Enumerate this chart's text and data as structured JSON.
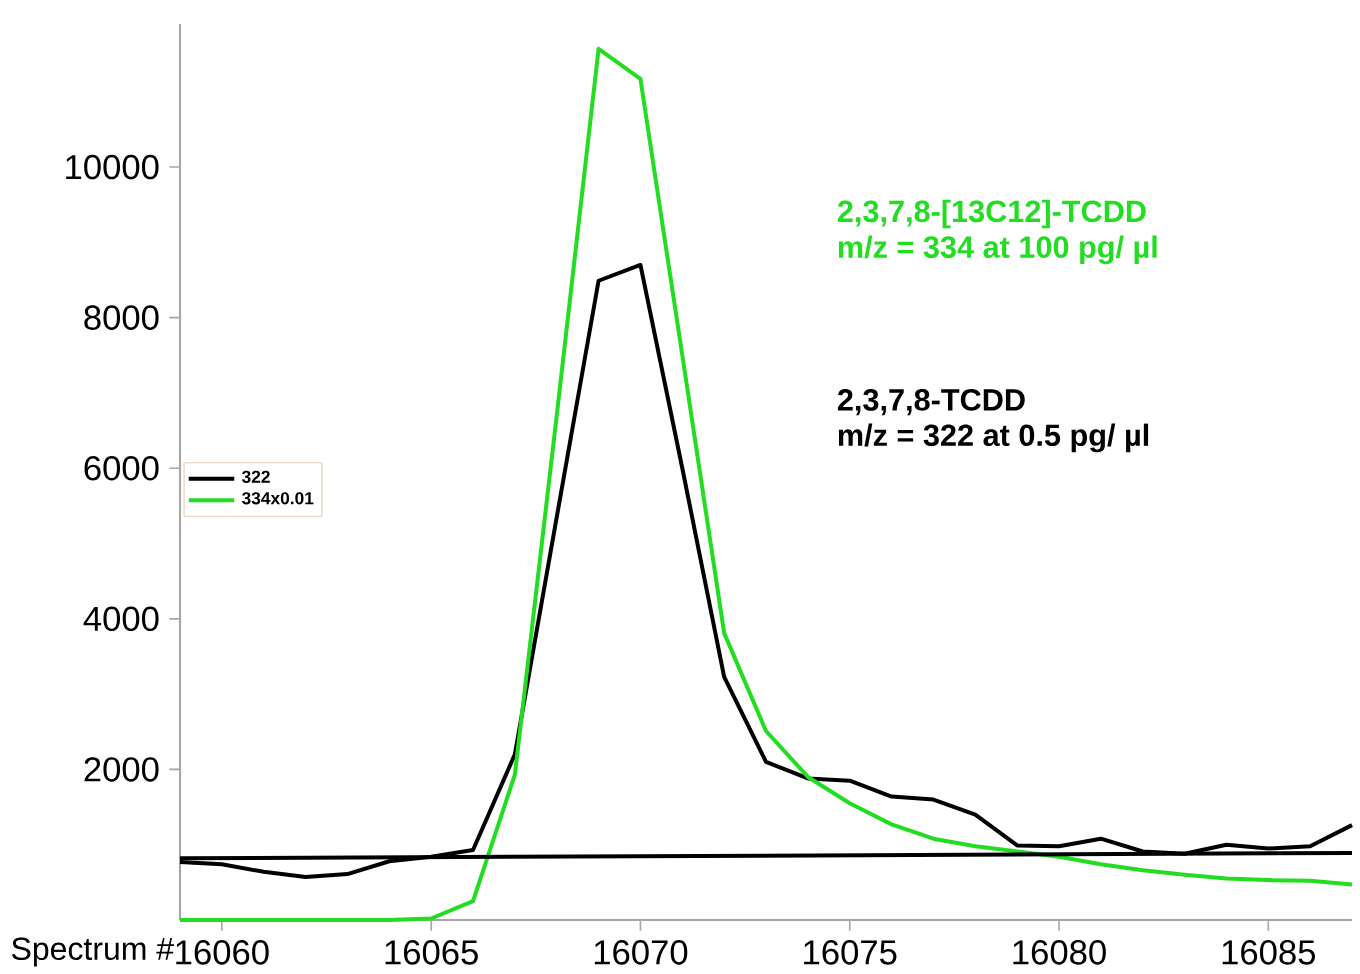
{
  "chart_data": {
    "type": "line",
    "xlabel": "Spectrum #",
    "xlim": [
      16059,
      16087
    ],
    "xticks": [
      16060,
      16065,
      16070,
      16075,
      16080,
      16085
    ],
    "ylim": [
      0,
      11900
    ],
    "yticks": [
      2000,
      4000,
      6000,
      8000,
      10000
    ],
    "x": [
      16059,
      16060,
      16061,
      16062,
      16063,
      16064,
      16065,
      16066,
      16067,
      16068,
      16069,
      16070,
      16071,
      16072,
      16073,
      16074,
      16075,
      16076,
      16077,
      16078,
      16079,
      16080,
      16081,
      16082,
      16083,
      16084,
      16085,
      16086,
      16087
    ],
    "series": [
      {
        "name": "322",
        "color": "#000000",
        "values": [
          770,
          740,
          640,
          570,
          610,
          780,
          840,
          930,
          2200,
          5350,
          8490,
          8700,
          6000,
          3230,
          2100,
          1880,
          1850,
          1640,
          1600,
          1400,
          990,
          980,
          1080,
          910,
          880,
          1000,
          950,
          980,
          1260
        ]
      },
      {
        "name": "334x0.01",
        "color": "#22dd22",
        "values": [
          0,
          0,
          0,
          0,
          0,
          0,
          20,
          250,
          1930,
          6700,
          11570,
          11170,
          7500,
          3810,
          2510,
          1900,
          1550,
          1270,
          1080,
          980,
          910,
          840,
          740,
          660,
          600,
          550,
          530,
          520,
          470
        ]
      },
      {
        "color": "#000000",
        "x": [
          16059,
          16087
        ],
        "values": [
          820,
          890
        ]
      }
    ],
    "annotations": [
      "2,3,7,8-[13C12]-TCDD",
      "m/z = 334 at 100 pg/ µl",
      "2,3,7,8-TCDD",
      "m/z = 322 at 0.5 pg/ µl"
    ],
    "legend": "left",
    "grid": false,
    "marker": "none",
    "line_style": "solid"
  }
}
